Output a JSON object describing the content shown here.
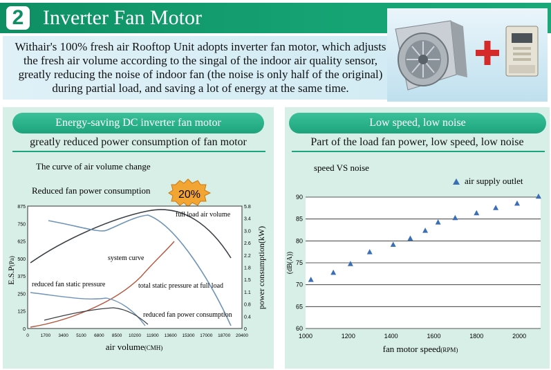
{
  "header": {
    "number": "2",
    "title": "Inverter Fan Motor"
  },
  "intro": {
    "text": "Withair's 100% fresh air Rooftop Unit adopts inverter fan motor, which adjusts the fresh air volume according to the singal of the indoor air quality sensor, greatly reducing the noise of indoor fan (the noise is only half of the original) during partial load, and saving a lot of energy at the same time."
  },
  "left_panel": {
    "pill": "Energy-saving DC inverter fan motor",
    "subtitle": "greatly reduced power consumption of fan motor",
    "caption1": "The curve of air volume change",
    "caption2": "Reduced fan power consumption",
    "badge": "20%",
    "chart": {
      "y_ticks_left": [
        "875",
        "750",
        "625",
        "500",
        "375",
        "250",
        "125",
        "0"
      ],
      "y_ticks_right": [
        "5.8",
        "3.4",
        "3.0",
        "2.6",
        "2.2",
        "1.8",
        "1.5",
        "1.1",
        "0.8",
        "0.4",
        "0"
      ],
      "x_ticks": [
        "0",
        "1700",
        "3400",
        "5100",
        "6800",
        "8500",
        "10200",
        "11900",
        "13600",
        "15300",
        "17000",
        "18700",
        "20400"
      ],
      "ylabel_left": "E.S.P",
      "ylabel_left_unit": "(Pa)",
      "ylabel_right": "power consumption(kW)",
      "xlabel": "air volume",
      "xlabel_unit": "(CMH)",
      "labels": {
        "full": "full load air volume",
        "system": "system curve",
        "reduced_static": "reduced fan static pressure",
        "total_static": "total static pressure at full load",
        "reduced_power": "reduced fan power consumption"
      }
    }
  },
  "right_panel": {
    "pill": "Low speed, low noise",
    "subtitle": "Part of the load fan power, low speed, low noise",
    "caption": "speed VS noise",
    "legend": "air supply outlet",
    "chart_data": {
      "type": "scatter",
      "title": "speed VS noise",
      "xlabel": "fan motor speed",
      "xlabel_unit": "(RPM)",
      "ylabel": "(dB(A))",
      "xlim": [
        1000,
        2100
      ],
      "ylim": [
        60,
        90
      ],
      "x_ticks": [
        "1000",
        "1200",
        "1400",
        "1600",
        "1800",
        "2000"
      ],
      "y_ticks": [
        "90",
        "85",
        "80",
        "75",
        "70",
        "65",
        "60"
      ],
      "series": [
        {
          "name": "air supply outlet",
          "x": [
            1025,
            1130,
            1210,
            1300,
            1410,
            1490,
            1560,
            1620,
            1700,
            1800,
            1890,
            1990,
            2090
          ],
          "y": [
            71.2,
            72.8,
            74.8,
            77.5,
            79.2,
            80.6,
            82.4,
            84.3,
            85.3,
            86.4,
            87.6,
            88.6,
            90.2
          ]
        }
      ],
      "color": "#3b6fb5",
      "grid": true,
      "legend_position": "top-right"
    }
  }
}
